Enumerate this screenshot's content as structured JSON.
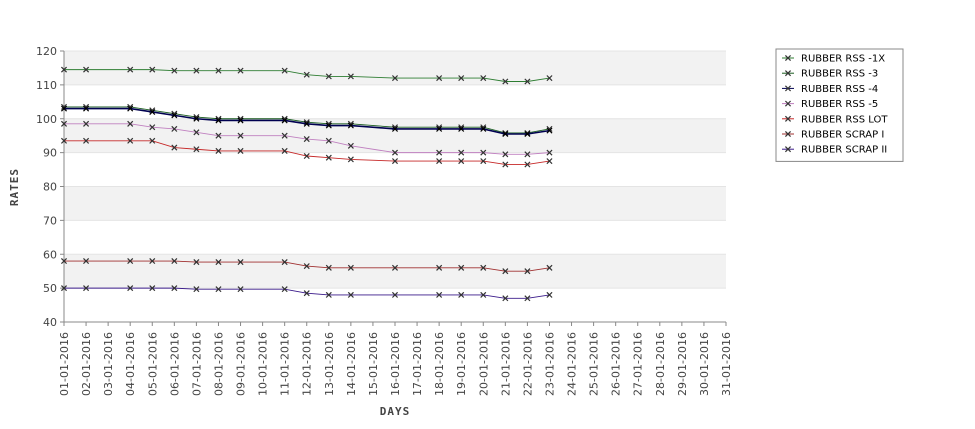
{
  "chart_data": {
    "type": "line",
    "xlabel": "DAYS",
    "ylabel": "RATES",
    "ylim": [
      40,
      120
    ],
    "yticks": [
      40,
      50,
      60,
      70,
      80,
      90,
      100,
      110,
      120
    ],
    "grid": true,
    "legend_position": "right",
    "categories": [
      "01-01-2016",
      "02-01-2016",
      "03-01-2016",
      "04-01-2016",
      "05-01-2016",
      "06-01-2016",
      "07-01-2016",
      "08-01-2016",
      "09-01-2016",
      "10-01-2016",
      "11-01-2016",
      "12-01-2016",
      "13-01-2016",
      "14-01-2016",
      "15-01-2016",
      "16-01-2016",
      "17-01-2016",
      "18-01-2016",
      "19-01-2016",
      "20-01-2016",
      "21-01-2016",
      "22-01-2016",
      "23-01-2016",
      "24-01-2016",
      "25-01-2016",
      "26-01-2016",
      "27-01-2016",
      "28-01-2016",
      "29-01-2016",
      "30-01-2016",
      "31-01-2016"
    ],
    "series": [
      {
        "name": "RUBBER RSS -1X",
        "color": "#2e7d32",
        "points": [
          [
            0,
            114.5
          ],
          [
            1,
            114.5
          ],
          [
            3,
            114.5
          ],
          [
            4,
            114.5
          ],
          [
            5,
            114.2
          ],
          [
            6,
            114.2
          ],
          [
            7,
            114.2
          ],
          [
            8,
            114.2
          ],
          [
            10,
            114.2
          ],
          [
            11,
            113
          ],
          [
            12,
            112.5
          ],
          [
            13,
            112.5
          ],
          [
            15,
            112
          ],
          [
            17,
            112
          ],
          [
            18,
            112
          ],
          [
            19,
            112
          ],
          [
            20,
            111
          ],
          [
            21,
            111
          ],
          [
            22,
            112
          ]
        ]
      },
      {
        "name": "RUBBER RSS -3",
        "color": "#1b5e20",
        "points": [
          [
            0,
            103.5
          ],
          [
            1,
            103.5
          ],
          [
            3,
            103.5
          ],
          [
            4,
            102.5
          ],
          [
            5,
            101.5
          ],
          [
            6,
            100.5
          ],
          [
            7,
            100
          ],
          [
            8,
            100
          ],
          [
            10,
            100
          ],
          [
            11,
            99
          ],
          [
            12,
            98.5
          ],
          [
            13,
            98.5
          ],
          [
            15,
            97.5
          ],
          [
            17,
            97.5
          ],
          [
            18,
            97.5
          ],
          [
            19,
            97.5
          ],
          [
            20,
            95.8
          ],
          [
            21,
            95.8
          ],
          [
            22,
            97
          ]
        ]
      },
      {
        "name": "RUBBER RSS -4",
        "color": "#000050",
        "points": [
          [
            0,
            103
          ],
          [
            1,
            103
          ],
          [
            3,
            103
          ],
          [
            4,
            102
          ],
          [
            5,
            101
          ],
          [
            6,
            100
          ],
          [
            7,
            99.5
          ],
          [
            8,
            99.5
          ],
          [
            10,
            99.5
          ],
          [
            11,
            98.5
          ],
          [
            12,
            98
          ],
          [
            13,
            98
          ],
          [
            15,
            97
          ],
          [
            17,
            97
          ],
          [
            18,
            97
          ],
          [
            19,
            97
          ],
          [
            20,
            95.5
          ],
          [
            21,
            95.5
          ],
          [
            22,
            96.5
          ]
        ]
      },
      {
        "name": "RUBBER RSS -5",
        "color": "#c080c0",
        "points": [
          [
            0,
            98.5
          ],
          [
            1,
            98.5
          ],
          [
            3,
            98.5
          ],
          [
            4,
            97.5
          ],
          [
            5,
            97
          ],
          [
            6,
            96
          ],
          [
            7,
            95
          ],
          [
            8,
            95
          ],
          [
            10,
            95
          ],
          [
            11,
            94
          ],
          [
            12,
            93.5
          ],
          [
            13,
            92
          ],
          [
            15,
            90
          ],
          [
            17,
            90
          ],
          [
            18,
            90
          ],
          [
            19,
            90
          ],
          [
            20,
            89.5
          ],
          [
            21,
            89.5
          ],
          [
            22,
            90
          ]
        ]
      },
      {
        "name": "RUBBER RSS LOT",
        "color": "#c62828",
        "points": [
          [
            0,
            93.5
          ],
          [
            1,
            93.5
          ],
          [
            3,
            93.5
          ],
          [
            4,
            93.5
          ],
          [
            5,
            91.5
          ],
          [
            6,
            91
          ],
          [
            7,
            90.5
          ],
          [
            8,
            90.5
          ],
          [
            10,
            90.5
          ],
          [
            11,
            89
          ],
          [
            12,
            88.5
          ],
          [
            13,
            88
          ],
          [
            15,
            87.5
          ],
          [
            17,
            87.5
          ],
          [
            18,
            87.5
          ],
          [
            19,
            87.5
          ],
          [
            20,
            86.5
          ],
          [
            21,
            86.5
          ],
          [
            22,
            87.5
          ]
        ]
      },
      {
        "name": "RUBBER SCRAP I",
        "color": "#a03030",
        "points": [
          [
            0,
            58
          ],
          [
            1,
            58
          ],
          [
            3,
            58
          ],
          [
            4,
            58
          ],
          [
            5,
            58
          ],
          [
            6,
            57.7
          ],
          [
            7,
            57.7
          ],
          [
            8,
            57.7
          ],
          [
            10,
            57.7
          ],
          [
            11,
            56.5
          ],
          [
            12,
            56
          ],
          [
            13,
            56
          ],
          [
            15,
            56
          ],
          [
            17,
            56
          ],
          [
            18,
            56
          ],
          [
            19,
            56
          ],
          [
            20,
            55
          ],
          [
            21,
            55
          ],
          [
            22,
            56
          ]
        ]
      },
      {
        "name": "RUBBER SCRAP II",
        "color": "#3a1a8a",
        "points": [
          [
            0,
            50
          ],
          [
            1,
            50
          ],
          [
            3,
            50
          ],
          [
            4,
            50
          ],
          [
            5,
            50
          ],
          [
            6,
            49.7
          ],
          [
            7,
            49.7
          ],
          [
            8,
            49.7
          ],
          [
            10,
            49.7
          ],
          [
            11,
            48.5
          ],
          [
            12,
            48
          ],
          [
            13,
            48
          ],
          [
            15,
            48
          ],
          [
            17,
            48
          ],
          [
            18,
            48
          ],
          [
            19,
            48
          ],
          [
            20,
            47
          ],
          [
            21,
            47
          ],
          [
            22,
            48
          ]
        ]
      }
    ]
  }
}
